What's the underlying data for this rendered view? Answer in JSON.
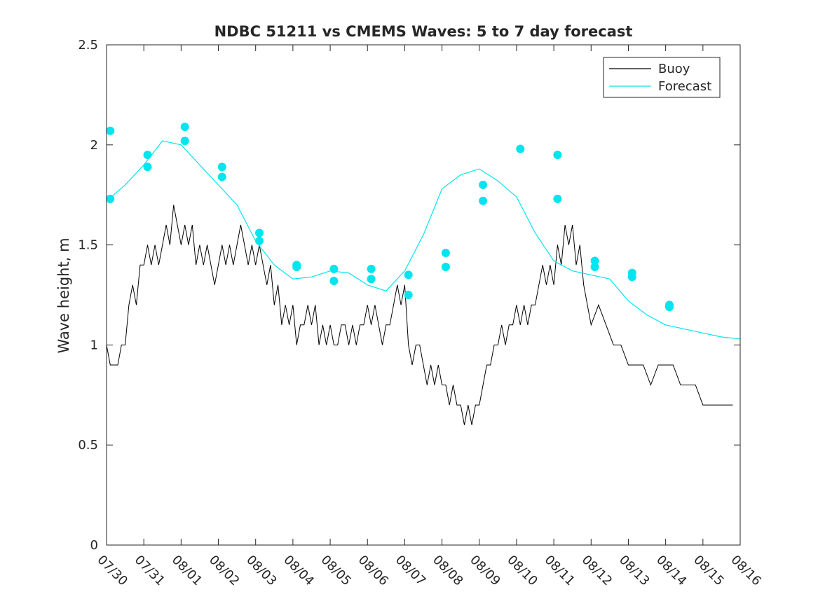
{
  "chart_data": {
    "type": "line",
    "title": "NDBC 51211 vs CMEMS Waves: 5 to 7 day forecast",
    "xlabel": "",
    "ylabel": "Wave height, m",
    "xlim": [
      0,
      17
    ],
    "ylim": [
      0,
      2.5
    ],
    "x_tick_labels": [
      "07/30",
      "07/31",
      "08/01",
      "08/02",
      "08/03",
      "08/04",
      "08/05",
      "08/06",
      "08/07",
      "08/08",
      "08/09",
      "08/10",
      "08/11",
      "08/12",
      "08/13",
      "08/14",
      "08/15",
      "08/16"
    ],
    "y_ticks": [
      0,
      0.5,
      1,
      1.5,
      2,
      2.5
    ],
    "y_tick_labels": [
      "0",
      "0.5",
      "1",
      "1.5",
      "2",
      "2.5"
    ],
    "legend": {
      "position": "top-right",
      "entries": [
        {
          "name": "Buoy",
          "color": "#000000"
        },
        {
          "name": "Forecast",
          "color": "#00e5ee"
        }
      ]
    },
    "series": [
      {
        "name": "Buoy",
        "color": "#000000",
        "x": [
          0.0,
          0.1,
          0.3,
          0.4,
          0.5,
          0.6,
          0.7,
          0.8,
          0.9,
          1.0,
          1.1,
          1.2,
          1.3,
          1.4,
          1.5,
          1.6,
          1.7,
          1.8,
          1.9,
          2.0,
          2.1,
          2.2,
          2.3,
          2.4,
          2.5,
          2.6,
          2.7,
          2.8,
          2.9,
          3.0,
          3.1,
          3.2,
          3.3,
          3.4,
          3.5,
          3.6,
          3.7,
          3.8,
          3.9,
          4.0,
          4.1,
          4.2,
          4.3,
          4.4,
          4.5,
          4.6,
          4.7,
          4.8,
          4.9,
          5.0,
          5.1,
          5.2,
          5.3,
          5.4,
          5.5,
          5.6,
          5.7,
          5.8,
          5.9,
          6.0,
          6.1,
          6.2,
          6.3,
          6.4,
          6.5,
          6.6,
          6.7,
          6.8,
          6.9,
          7.0,
          7.1,
          7.2,
          7.3,
          7.4,
          7.5,
          7.6,
          7.7,
          7.8,
          7.9,
          8.0,
          8.1,
          8.2,
          8.3,
          8.4,
          8.5,
          8.6,
          8.7,
          8.8,
          8.9,
          9.0,
          9.1,
          9.2,
          9.3,
          9.4,
          9.5,
          9.6,
          9.7,
          9.8,
          9.9,
          10.0,
          10.1,
          10.2,
          10.3,
          10.4,
          10.5,
          10.6,
          10.7,
          10.8,
          10.9,
          11.0,
          11.1,
          11.2,
          11.3,
          11.4,
          11.5,
          11.6,
          11.7,
          11.8,
          11.9,
          12.0,
          12.1,
          12.2,
          12.3,
          12.4,
          12.5,
          12.6,
          12.7,
          12.8,
          12.9,
          13.0,
          13.2,
          13.4,
          13.6,
          13.8,
          14.0,
          14.2,
          14.4,
          14.6,
          14.8,
          15.0,
          15.2,
          15.4,
          15.6,
          15.8,
          16.0,
          16.2,
          16.4,
          16.6,
          16.8
        ],
        "y": [
          1.0,
          0.9,
          0.9,
          1.0,
          1.0,
          1.2,
          1.3,
          1.2,
          1.4,
          1.4,
          1.5,
          1.4,
          1.5,
          1.4,
          1.5,
          1.6,
          1.5,
          1.7,
          1.6,
          1.5,
          1.6,
          1.5,
          1.6,
          1.4,
          1.5,
          1.4,
          1.5,
          1.4,
          1.3,
          1.4,
          1.5,
          1.4,
          1.5,
          1.4,
          1.5,
          1.6,
          1.5,
          1.4,
          1.5,
          1.4,
          1.5,
          1.4,
          1.3,
          1.4,
          1.2,
          1.3,
          1.1,
          1.2,
          1.1,
          1.2,
          1.0,
          1.1,
          1.1,
          1.2,
          1.1,
          1.2,
          1.0,
          1.1,
          1.0,
          1.1,
          1.0,
          1.0,
          1.1,
          1.1,
          1.0,
          1.1,
          1.0,
          1.1,
          1.1,
          1.2,
          1.1,
          1.2,
          1.1,
          1.0,
          1.1,
          1.1,
          1.2,
          1.3,
          1.2,
          1.3,
          1.0,
          0.9,
          1.0,
          1.0,
          0.9,
          0.8,
          0.9,
          0.8,
          0.9,
          0.8,
          0.8,
          0.7,
          0.8,
          0.7,
          0.7,
          0.6,
          0.7,
          0.6,
          0.7,
          0.7,
          0.8,
          0.9,
          0.9,
          1.0,
          1.0,
          1.1,
          1.0,
          1.1,
          1.1,
          1.2,
          1.1,
          1.2,
          1.1,
          1.2,
          1.2,
          1.3,
          1.4,
          1.3,
          1.4,
          1.3,
          1.5,
          1.4,
          1.6,
          1.5,
          1.6,
          1.4,
          1.5,
          1.3,
          1.2,
          1.1,
          1.2,
          1.1,
          1.0,
          1.0,
          0.9,
          0.9,
          0.9,
          0.8,
          0.9,
          0.9,
          0.9,
          0.8,
          0.8,
          0.8,
          0.7,
          0.7,
          0.7,
          0.7,
          0.7
        ]
      },
      {
        "name": "Forecast",
        "color": "#00e5ee",
        "x": [
          0.0,
          0.5,
          1.0,
          1.5,
          2.0,
          2.5,
          3.0,
          3.5,
          4.0,
          4.5,
          5.0,
          5.5,
          6.0,
          6.5,
          7.0,
          7.5,
          8.0,
          8.5,
          9.0,
          9.5,
          10.0,
          10.5,
          11.0,
          11.5,
          12.0,
          12.5,
          13.0,
          13.5,
          14.0,
          14.5,
          15.0,
          15.5,
          16.0,
          16.5,
          17.0
        ],
        "y": [
          1.72,
          1.8,
          1.9,
          2.02,
          2.0,
          1.9,
          1.8,
          1.7,
          1.52,
          1.4,
          1.33,
          1.34,
          1.37,
          1.36,
          1.3,
          1.27,
          1.37,
          1.55,
          1.78,
          1.85,
          1.88,
          1.82,
          1.74,
          1.56,
          1.42,
          1.37,
          1.35,
          1.33,
          1.22,
          1.15,
          1.1,
          1.08,
          1.06,
          1.04,
          1.03
        ]
      }
    ],
    "forecast_markers": {
      "x": [
        0.1,
        0.1,
        1.1,
        1.1,
        2.1,
        2.1,
        3.1,
        3.1,
        4.1,
        4.1,
        5.1,
        5.1,
        6.1,
        6.1,
        7.1,
        7.1,
        8.1,
        8.1,
        9.1,
        9.1,
        10.1,
        10.1,
        11.1,
        12.1,
        12.1,
        13.1,
        13.1,
        14.1,
        14.1,
        15.1,
        15.1
      ],
      "y": [
        2.07,
        1.73,
        1.95,
        1.89,
        2.09,
        2.02,
        1.89,
        1.84,
        1.56,
        1.52,
        1.4,
        1.39,
        1.38,
        1.32,
        1.38,
        1.33,
        1.35,
        1.25,
        1.46,
        1.39,
        1.8,
        1.72,
        1.98,
        1.95,
        1.73,
        1.42,
        1.39,
        1.36,
        1.34,
        1.2,
        1.19
      ]
    }
  }
}
